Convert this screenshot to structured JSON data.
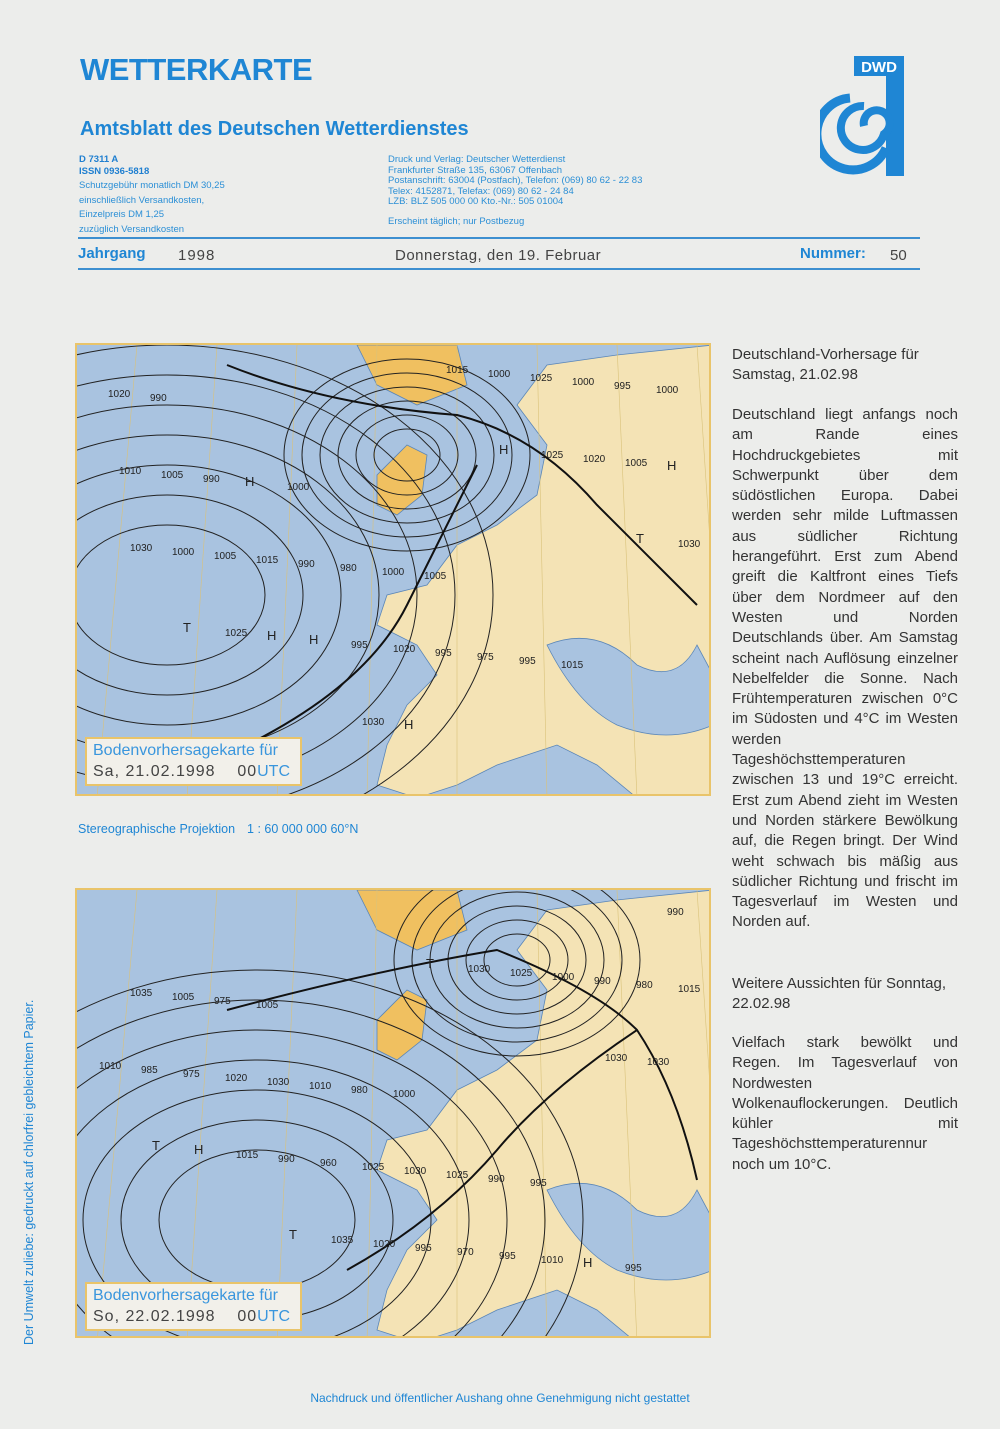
{
  "header": {
    "title": "WETTERKARTE",
    "subtitle": "Amtsblatt des Deutschen Wetterdienstes",
    "logo_text": "DWD",
    "code": "D 7311 A",
    "issn": "ISSN 0936-5818",
    "pricing": [
      "Schutzgebühr monatlich DM 30,25",
      "einschließlich Versandkosten,",
      "Einzelpreis DM 1,25",
      "zuzüglich Versandkosten"
    ],
    "publisher": [
      "Druck und Verlag: Deutscher Wetterdienst",
      "Frankfurter Straße 135, 63067 Offenbach",
      "Postanschrift: 63004 (Postfach), Telefon: (069) 80 62 - 22 83",
      "Telex: 4152871, Telefax: (069) 80 62 - 24 84",
      "LZB: BLZ 505 000 00  Kto.-Nr.: 505 01004"
    ],
    "frequency": "Erscheint täglich; nur Postbezug",
    "jahrgang_label": "Jahrgang",
    "jahrgang": "1998",
    "date": "Donnerstag, den 19. Februar",
    "nummer_label": "Nummer:",
    "nummer": "50"
  },
  "colors": {
    "accent": "#1f86d4",
    "sea": "#a9c3e0",
    "land": "#f0c060",
    "frame": "#e9c46a"
  },
  "map1": {
    "caption_title": "Bodenvorhersagekarte für",
    "caption_date": "Sa, 21.02.1998",
    "caption_time": "00",
    "caption_utc": "UTC",
    "labels": [
      "990",
      "1000",
      "1005",
      "1015",
      "1020",
      "H",
      "1000",
      "995",
      "1000",
      "990",
      "980",
      "975",
      "995",
      "1005",
      "990",
      "995",
      "1000",
      "1010",
      "1015",
      "1020",
      "1025",
      "H",
      "1005",
      "995",
      "1000",
      "1005",
      "1000",
      "H",
      "1015",
      "1020",
      "1030",
      "H",
      "H",
      "1025",
      "1030",
      "1025",
      "1030",
      "H",
      "T",
      "T"
    ]
  },
  "projection": {
    "label": "Stereographische Projektion",
    "scale": "1 : 60 000 000  60°N"
  },
  "map2": {
    "caption_title": "Bodenvorhersagekarte für",
    "caption_date": "So, 22.02.1998",
    "caption_time": "00",
    "caption_utc": "UTC",
    "labels": [
      "1005",
      "1000",
      "995",
      "990",
      "975",
      "980",
      "990",
      "995",
      "1005",
      "1010",
      "1025",
      "H",
      "1035",
      "1030",
      "1030",
      "1010",
      "1015",
      "1020",
      "1025",
      "995",
      "980",
      "975",
      "960",
      "970",
      "990",
      "985",
      "990",
      "995",
      "1000",
      "1010",
      "1015",
      "1020",
      "1025",
      "1030",
      "H",
      "1035",
      "1030",
      "1030",
      "T",
      "T",
      "T"
    ]
  },
  "forecast": {
    "heading": "Deutschland-Vorhersage für Samstag, 21.02.98",
    "body": "Deutschland liegt anfangs noch am Rande eines Hochdruckgebietes mit Schwerpunkt über dem südöstlichen Europa. Dabei werden sehr milde Luftmassen aus südlicher Richtung herangeführt. Erst zum Abend greift die Kaltfront eines Tiefs über dem Nordmeer auf den Westen und Norden Deutschlands über. Am Samstag scheint nach Auflösung einzelner Nebelfelder die Sonne. Nach Frühtemperaturen zwischen 0°C im Südosten und 4°C im Westen werden Tageshöchsttemperaturen zwischen 13 und 19°C erreicht. Erst zum Abend zieht im Westen und Norden stärkere Bewölkung auf, die Regen bringt. Der Wind weht schwach bis mäßig aus südlicher Richtung und frischt im Tagesverlauf im Westen und Norden auf."
  },
  "outlook": {
    "heading": "Weitere Aussichten für Sonntag, 22.02.98",
    "body": "Vielfach stark bewölkt und Regen. Im Tagesverlauf von Nordwesten Wolkenauflockerungen. Deutlich kühler mit Tageshöchsttemperaturennur noch um 10°C."
  },
  "side_note": "Der Umwelt zuliebe: gedruckt auf chlorfrei gebleichtem Papier.",
  "footer": "Nachdruck und öffentlicher Aushang ohne Genehmigung nicht gestattet"
}
